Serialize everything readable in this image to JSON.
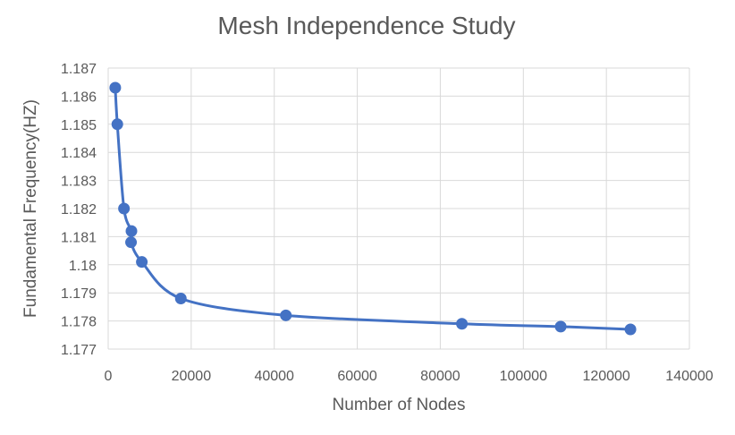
{
  "chart_data": {
    "type": "scatter",
    "title": "Mesh Independence Study",
    "xlabel": "Number of Nodes",
    "ylabel": "Fundamental Frequency(HZ)",
    "xlim": [
      0,
      140000
    ],
    "ylim": [
      1.177,
      1.187
    ],
    "x_ticks": [
      "0",
      "20000",
      "40000",
      "60000",
      "80000",
      "100000",
      "120000",
      "140000"
    ],
    "y_ticks": [
      "1.177",
      "1.178",
      "1.179",
      "1.18",
      "1.181",
      "1.182",
      "1.183",
      "1.184",
      "1.185",
      "1.186",
      "1.187"
    ],
    "grid": true,
    "smoothed_line": true,
    "series": [
      {
        "color": "#4472C4",
        "x": [
          1700,
          2200,
          3800,
          5600,
          5500,
          8100,
          17500,
          42800,
          85200,
          109000,
          125800
        ],
        "y": [
          1.1863,
          1.185,
          1.182,
          1.1812,
          1.1808,
          1.1801,
          1.1788,
          1.1782,
          1.1779,
          1.1778,
          1.1777
        ]
      }
    ]
  }
}
